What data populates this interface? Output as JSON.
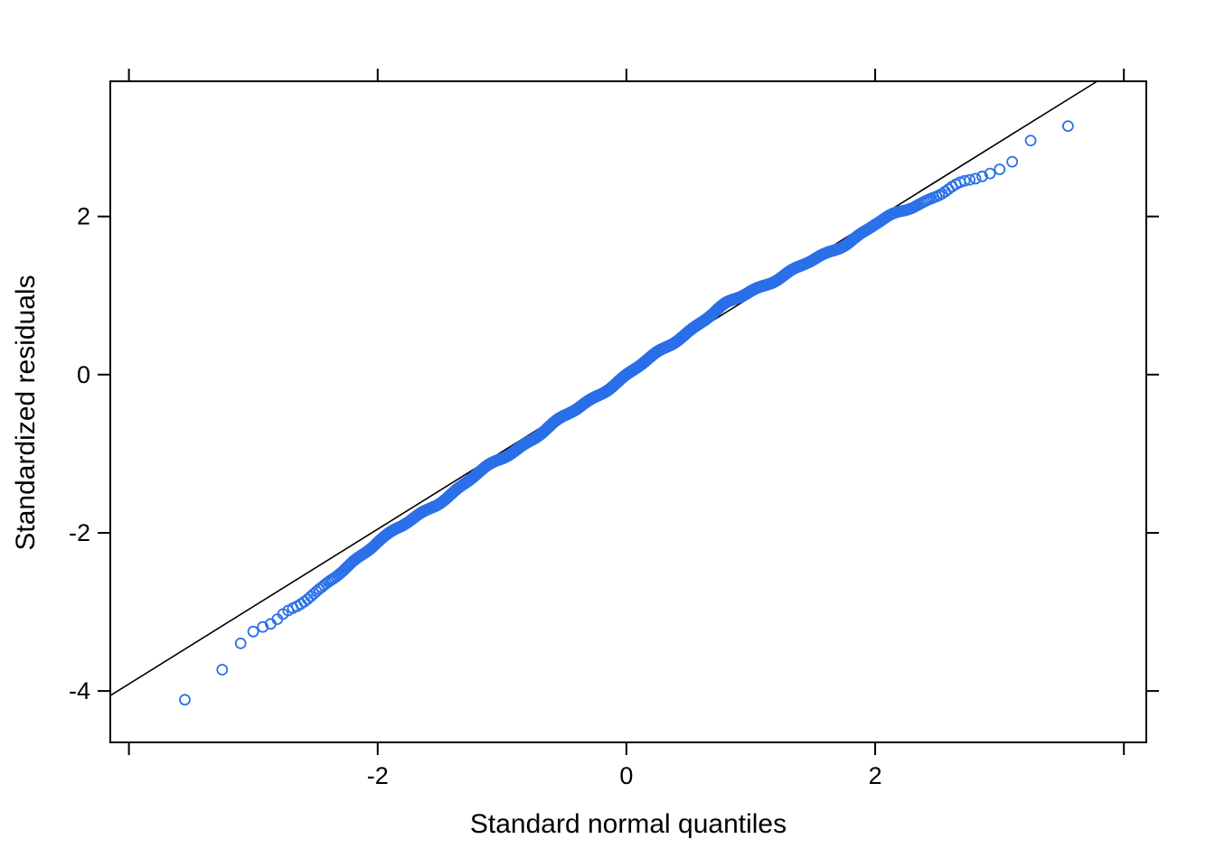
{
  "background": "#ffffff",
  "chart_data": {
    "type": "scatter",
    "subtype": "qq-plot",
    "title": "",
    "xlabel": "Standard normal quantiles",
    "ylabel": "Standardized residuals",
    "xlim": [
      -4.15,
      4.18
    ],
    "ylim": [
      -4.65,
      3.71
    ],
    "x_ticks": {
      "values": [
        -4,
        -2,
        0,
        2,
        4
      ],
      "labels": [
        "",
        "-2",
        "0",
        "2",
        ""
      ]
    },
    "y_ticks": {
      "values": [
        -4,
        -2,
        0,
        2
      ],
      "labels": [
        "-4",
        "-2",
        "0",
        "2"
      ]
    },
    "grid": false,
    "n_points": 2600,
    "point_style": {
      "color": "#2b70e8",
      "radius": 5.5,
      "stroke_width": 1.8,
      "fill": "none",
      "waviness": 0.02
    },
    "reference_line": {
      "slope": 0.979,
      "intercept": 0.005,
      "color": "#000000",
      "width": 1.6
    },
    "curve_anchors": [
      [
        -3.65,
        -4.15
      ],
      [
        -3.37,
        -4.06
      ],
      [
        -3.22,
        -3.66
      ],
      [
        -3.08,
        -3.36
      ],
      [
        -2.95,
        -3.22
      ],
      [
        -2.85,
        -3.12
      ],
      [
        -2.75,
        -3.0
      ],
      [
        -2.65,
        -2.92
      ],
      [
        -2.55,
        -2.82
      ],
      [
        -2.45,
        -2.72
      ],
      [
        -2.35,
        -2.58
      ],
      [
        -2.2,
        -2.36
      ],
      [
        -2.0,
        -2.1
      ],
      [
        -1.8,
        -1.92
      ],
      [
        -1.6,
        -1.71
      ],
      [
        -1.4,
        -1.49
      ],
      [
        -1.2,
        -1.26
      ],
      [
        -1.0,
        -1.06
      ],
      [
        -0.8,
        -0.85
      ],
      [
        -0.6,
        -0.64
      ],
      [
        -0.4,
        -0.44
      ],
      [
        -0.2,
        -0.22
      ],
      [
        0.0,
        -0.01
      ],
      [
        0.2,
        0.21
      ],
      [
        0.4,
        0.44
      ],
      [
        0.6,
        0.67
      ],
      [
        0.8,
        0.88
      ],
      [
        1.0,
        1.06
      ],
      [
        1.2,
        1.21
      ],
      [
        1.4,
        1.36
      ],
      [
        1.6,
        1.52
      ],
      [
        1.8,
        1.7
      ],
      [
        2.0,
        1.9
      ],
      [
        2.2,
        2.05
      ],
      [
        2.4,
        2.2
      ],
      [
        2.6,
        2.36
      ],
      [
        2.8,
        2.47
      ],
      [
        2.95,
        2.55
      ],
      [
        3.1,
        2.72
      ],
      [
        3.25,
        2.95
      ],
      [
        3.4,
        3.05
      ],
      [
        3.65,
        3.2
      ]
    ]
  }
}
